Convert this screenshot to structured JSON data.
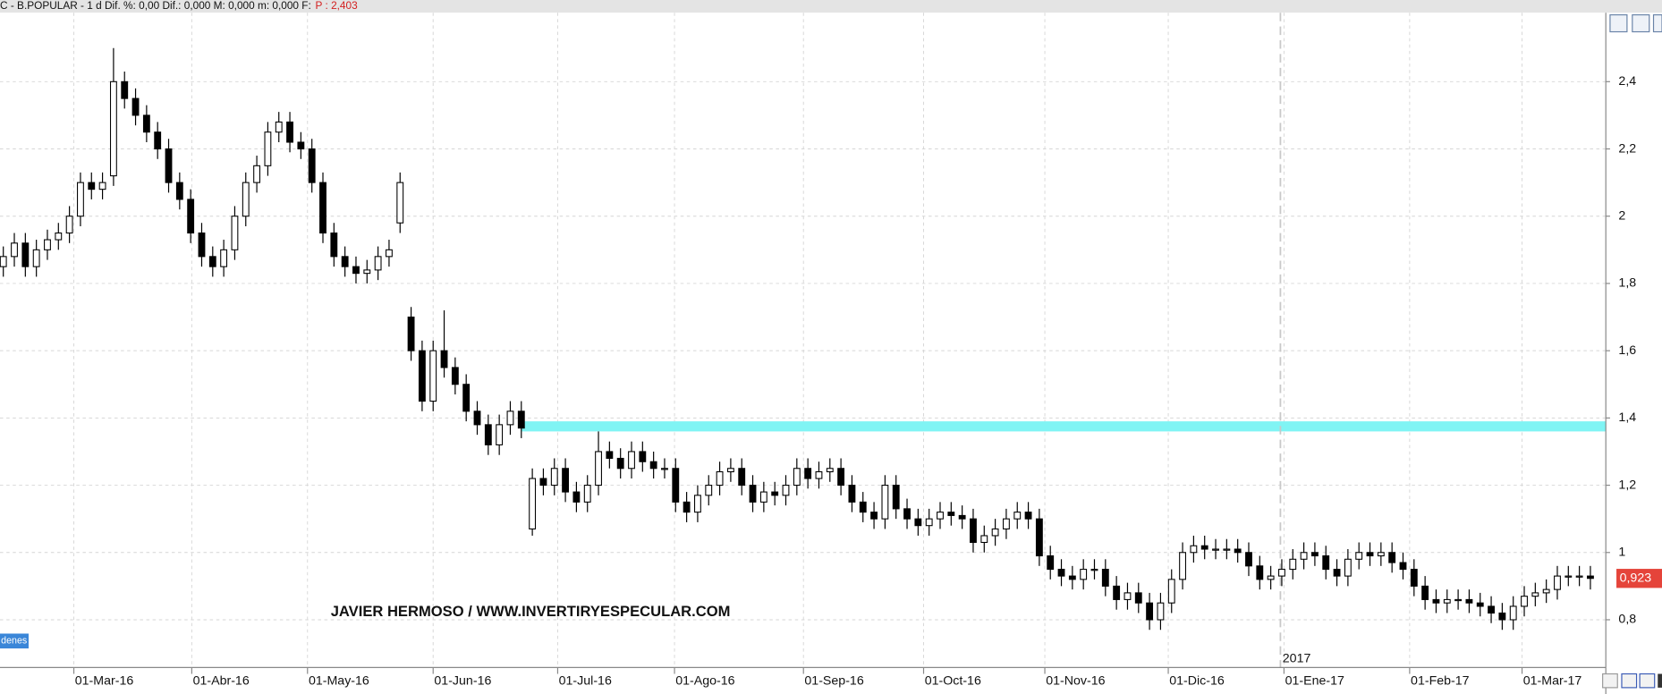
{
  "chart_data": {
    "type": "candlestick",
    "title": "C - B.POPULAR -  1 d  Dif. %: 0,00  Dif.: 0,000  M: 0,000  m: 0,000  F:",
    "subtitle": "P : 2,403",
    "watermark": "JAVIER HERMOSO / WWW.INVERTIRYESPECULAR.COM",
    "tag": "denes",
    "year_label": "2017",
    "x": [
      0,
      1,
      2,
      3,
      4,
      5,
      6,
      7,
      8,
      9,
      10,
      11,
      12,
      13,
      14,
      15,
      16,
      17,
      18,
      19,
      20,
      21,
      22,
      23,
      24,
      25,
      26,
      27,
      28,
      29,
      30,
      31,
      32,
      33,
      34,
      35,
      36,
      37,
      38,
      39,
      40,
      41,
      42,
      43,
      44,
      45,
      46,
      47,
      48,
      49,
      50,
      51,
      52,
      53,
      54,
      55,
      56,
      57,
      58,
      59,
      60,
      61,
      62,
      63,
      64,
      65,
      66,
      67,
      68,
      69,
      70,
      71,
      72,
      73,
      74,
      75,
      76,
      77,
      78,
      79,
      80,
      81,
      82,
      83,
      84,
      85,
      86,
      87,
      88,
      89,
      90,
      91,
      92,
      93,
      94,
      95,
      96,
      97,
      98,
      99,
      100,
      101,
      102,
      103,
      104,
      105,
      106,
      107,
      108,
      109,
      110,
      111,
      112,
      113,
      114,
      115,
      116,
      117,
      118,
      119,
      120,
      121,
      122,
      123,
      124,
      125,
      126,
      127,
      128,
      129,
      130,
      131,
      132,
      133,
      134,
      135,
      136,
      137,
      138,
      139,
      140,
      141,
      142,
      143,
      144
    ],
    "open": [
      1.85,
      1.88,
      1.92,
      1.85,
      1.9,
      1.93,
      1.95,
      2.0,
      2.1,
      2.08,
      2.12,
      2.4,
      2.35,
      2.3,
      2.25,
      2.2,
      2.1,
      2.05,
      1.95,
      1.88,
      1.85,
      1.9,
      2.0,
      2.1,
      2.15,
      2.25,
      2.28,
      2.22,
      2.2,
      2.1,
      1.95,
      1.88,
      1.85,
      1.83,
      1.84,
      1.88,
      1.98,
      1.7,
      1.6,
      1.45,
      1.6,
      1.55,
      1.5,
      1.42,
      1.38,
      1.32,
      1.38,
      1.42,
      1.07,
      1.22,
      1.2,
      1.25,
      1.18,
      1.15,
      1.2,
      1.3,
      1.28,
      1.25,
      1.3,
      1.27,
      1.25,
      1.25,
      1.15,
      1.12,
      1.17,
      1.2,
      1.24,
      1.25,
      1.2,
      1.15,
      1.18,
      1.17,
      1.2,
      1.25,
      1.22,
      1.24,
      1.25,
      1.2,
      1.15,
      1.12,
      1.1,
      1.2,
      1.13,
      1.1,
      1.08,
      1.1,
      1.12,
      1.11,
      1.1,
      1.03,
      1.05,
      1.07,
      1.1,
      1.12,
      1.1,
      0.99,
      0.95,
      0.93,
      0.92,
      0.95,
      0.95,
      0.9,
      0.86,
      0.88,
      0.85,
      0.8,
      0.85,
      0.92,
      1.0,
      1.02,
      1.01,
      1.01,
      1.01,
      1.0,
      0.96,
      0.92,
      0.93,
      0.95,
      0.98,
      1.0,
      0.99,
      0.95,
      0.93,
      0.98,
      1.0,
      0.99,
      1.0,
      0.97,
      0.95,
      0.9,
      0.86,
      0.85,
      0.86,
      0.86,
      0.85,
      0.84,
      0.82,
      0.8,
      0.84,
      0.87,
      0.88,
      0.89,
      0.93,
      0.93,
      0.93
    ],
    "high": [
      1.91,
      1.95,
      1.95,
      1.93,
      1.96,
      1.98,
      2.03,
      2.13,
      2.13,
      2.13,
      2.5,
      2.43,
      2.38,
      2.33,
      2.28,
      2.23,
      2.13,
      2.08,
      1.98,
      1.91,
      1.93,
      2.03,
      2.13,
      2.18,
      2.28,
      2.31,
      2.31,
      2.25,
      2.23,
      2.13,
      1.98,
      1.91,
      1.88,
      1.87,
      1.91,
      1.93,
      2.13,
      1.73,
      1.63,
      1.63,
      1.72,
      1.58,
      1.53,
      1.45,
      1.41,
      1.41,
      1.45,
      1.45,
      1.25,
      1.25,
      1.28,
      1.28,
      1.21,
      1.23,
      1.36,
      1.33,
      1.31,
      1.33,
      1.33,
      1.3,
      1.28,
      1.28,
      1.18,
      1.2,
      1.23,
      1.27,
      1.28,
      1.28,
      1.23,
      1.21,
      1.21,
      1.23,
      1.28,
      1.28,
      1.27,
      1.28,
      1.28,
      1.23,
      1.18,
      1.15,
      1.23,
      1.23,
      1.16,
      1.13,
      1.13,
      1.15,
      1.15,
      1.14,
      1.13,
      1.08,
      1.1,
      1.13,
      1.15,
      1.15,
      1.13,
      1.02,
      0.98,
      0.96,
      0.98,
      0.98,
      0.98,
      0.93,
      0.91,
      0.91,
      0.88,
      0.88,
      0.95,
      1.03,
      1.05,
      1.05,
      1.04,
      1.04,
      1.04,
      1.03,
      0.99,
      0.96,
      0.98,
      1.01,
      1.03,
      1.03,
      1.02,
      0.98,
      1.01,
      1.03,
      1.03,
      1.03,
      1.03,
      1.0,
      0.98,
      0.93,
      0.89,
      0.89,
      0.89,
      0.89,
      0.88,
      0.87,
      0.85,
      0.87,
      0.9,
      0.91,
      0.92,
      0.96,
      0.96,
      0.96,
      0.96
    ],
    "low": [
      1.82,
      1.85,
      1.82,
      1.82,
      1.87,
      1.9,
      1.92,
      1.97,
      2.05,
      2.05,
      2.09,
      2.32,
      2.27,
      2.22,
      2.17,
      2.07,
      2.02,
      1.92,
      1.85,
      1.82,
      1.82,
      1.87,
      1.97,
      2.07,
      2.12,
      2.22,
      2.19,
      2.17,
      2.07,
      1.92,
      1.85,
      1.82,
      1.8,
      1.8,
      1.81,
      1.85,
      1.95,
      1.57,
      1.42,
      1.42,
      1.52,
      1.47,
      1.39,
      1.35,
      1.29,
      1.29,
      1.35,
      1.34,
      1.05,
      1.17,
      1.17,
      1.15,
      1.12,
      1.12,
      1.17,
      1.25,
      1.22,
      1.22,
      1.24,
      1.22,
      1.22,
      1.12,
      1.09,
      1.09,
      1.14,
      1.17,
      1.21,
      1.17,
      1.12,
      1.12,
      1.14,
      1.14,
      1.17,
      1.19,
      1.19,
      1.21,
      1.17,
      1.12,
      1.09,
      1.07,
      1.07,
      1.1,
      1.07,
      1.05,
      1.05,
      1.07,
      1.08,
      1.07,
      1.0,
      1.0,
      1.02,
      1.04,
      1.07,
      1.07,
      0.96,
      0.92,
      0.9,
      0.89,
      0.89,
      0.92,
      0.87,
      0.83,
      0.83,
      0.82,
      0.77,
      0.77,
      0.82,
      0.89,
      0.97,
      0.98,
      0.98,
      0.98,
      0.97,
      0.93,
      0.89,
      0.89,
      0.9,
      0.92,
      0.95,
      0.96,
      0.92,
      0.9,
      0.9,
      0.95,
      0.96,
      0.96,
      0.94,
      0.92,
      0.87,
      0.83,
      0.82,
      0.82,
      0.83,
      0.82,
      0.81,
      0.79,
      0.77,
      0.77,
      0.81,
      0.84,
      0.85,
      0.86,
      0.9,
      0.9,
      0.89
    ],
    "close": [
      1.88,
      1.92,
      1.85,
      1.9,
      1.93,
      1.95,
      2.0,
      2.1,
      2.08,
      2.1,
      2.4,
      2.35,
      2.3,
      2.25,
      2.2,
      2.1,
      2.05,
      1.95,
      1.88,
      1.85,
      1.9,
      2.0,
      2.1,
      2.15,
      2.25,
      2.28,
      2.22,
      2.2,
      2.1,
      1.95,
      1.88,
      1.85,
      1.83,
      1.84,
      1.88,
      1.9,
      2.1,
      1.6,
      1.45,
      1.6,
      1.55,
      1.5,
      1.42,
      1.38,
      1.32,
      1.38,
      1.42,
      1.37,
      1.22,
      1.2,
      1.25,
      1.18,
      1.15,
      1.2,
      1.3,
      1.28,
      1.25,
      1.3,
      1.27,
      1.25,
      1.25,
      1.15,
      1.12,
      1.17,
      1.2,
      1.24,
      1.25,
      1.2,
      1.15,
      1.18,
      1.17,
      1.2,
      1.25,
      1.22,
      1.24,
      1.25,
      1.2,
      1.15,
      1.12,
      1.1,
      1.2,
      1.13,
      1.1,
      1.08,
      1.1,
      1.12,
      1.11,
      1.1,
      1.03,
      1.05,
      1.07,
      1.1,
      1.12,
      1.1,
      0.99,
      0.95,
      0.93,
      0.92,
      0.95,
      0.95,
      0.9,
      0.86,
      0.88,
      0.85,
      0.8,
      0.85,
      0.92,
      1.0,
      1.02,
      1.01,
      1.01,
      1.01,
      1.0,
      0.96,
      0.92,
      0.93,
      0.95,
      0.98,
      1.0,
      0.99,
      0.95,
      0.93,
      0.98,
      1.0,
      0.99,
      1.0,
      0.97,
      0.95,
      0.9,
      0.86,
      0.85,
      0.86,
      0.86,
      0.85,
      0.84,
      0.82,
      0.8,
      0.84,
      0.87,
      0.88,
      0.89,
      0.93,
      0.93,
      0.93,
      0.923
    ],
    "up_color": "#ffffff",
    "down_color": "#000000",
    "xlim": [
      -0.3,
      145.4
    ],
    "xticks": [
      {
        "value": 6.4,
        "label": "01-Mar-16"
      },
      {
        "value": 17.1,
        "label": "01-Abr-16"
      },
      {
        "value": 27.6,
        "label": "01-May-16"
      },
      {
        "value": 39.0,
        "label": "01-Jun-16"
      },
      {
        "value": 50.3,
        "label": "01-Jul-16"
      },
      {
        "value": 60.9,
        "label": "01-Ago-16"
      },
      {
        "value": 72.6,
        "label": "01-Sep-16"
      },
      {
        "value": 83.5,
        "label": "01-Oct-16"
      },
      {
        "value": 94.5,
        "label": "01-Nov-16"
      },
      {
        "value": 105.7,
        "label": "01-Dic-16"
      },
      {
        "value": 116.2,
        "label": "01-Ene-17"
      },
      {
        "value": 127.6,
        "label": "01-Feb-17"
      },
      {
        "value": 137.8,
        "label": "01-Mar-17"
      }
    ],
    "ylim": [
      0.658,
      2.605
    ],
    "yticks": [
      {
        "value": 0.8,
        "label": "0,8"
      },
      1,
      {
        "value": 1.2,
        "label": "1,2"
      },
      {
        "value": 1.4,
        "label": "1,4"
      },
      {
        "value": 1.6,
        "label": "1,6"
      },
      {
        "value": 1.8,
        "label": "1,8"
      },
      2,
      {
        "value": 2.2,
        "label": "2,2"
      },
      {
        "value": 2.4,
        "label": "2,4"
      }
    ],
    "grid": true,
    "bands": [
      {
        "y_from": 1.36,
        "y_to": 1.39,
        "x_from": 47,
        "color": "#80f4f4"
      }
    ],
    "last_price": {
      "value": 0.923,
      "label": "0,923",
      "color": "#e5443a"
    }
  }
}
